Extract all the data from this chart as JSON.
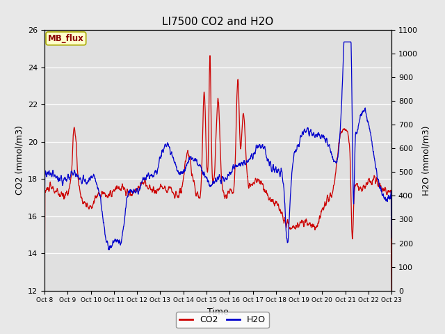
{
  "title": "LI7500 CO2 and H2O",
  "xlabel": "Time",
  "ylabel_left": "CO2 (mmol/m3)",
  "ylabel_right": "H2O (mmol/m3)",
  "co2_color": "#cc0000",
  "h2o_color": "#0000cc",
  "co2_ylim": [
    12,
    26
  ],
  "h2o_ylim": [
    0,
    1100
  ],
  "fig_bg_color": "#e8e8e8",
  "plot_bg_color": "#e0e0e0",
  "tag_text": "MB_flux",
  "tag_bg": "#ffffcc",
  "tag_edge": "#aaaa00",
  "xtick_labels": [
    "Oct 8",
    "Oct 9",
    "Oct 10",
    "Oct 11",
    "Oct 12",
    "Oct 13",
    "Oct 14",
    "Oct 15",
    "Oct 16",
    "Oct 17",
    "Oct 18",
    "Oct 19",
    "Oct 20",
    "Oct 21",
    "Oct 22",
    "Oct 23"
  ],
  "n_points": 1500,
  "seed": 10
}
